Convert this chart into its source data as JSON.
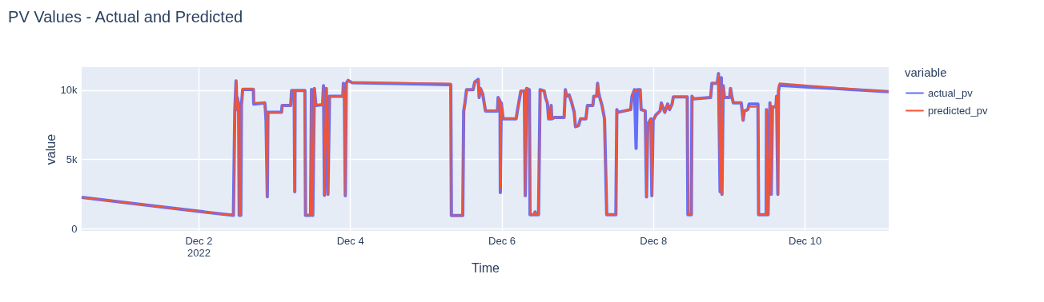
{
  "chart_data": {
    "type": "line",
    "title": "PV Values - Actual and Predicted",
    "xlabel": "Time",
    "ylabel": "value",
    "legend_title": "variable",
    "legend": "right",
    "grid": true,
    "line_style": "solid",
    "xlim": [
      "2022-11-30T11:00",
      "2022-12-11T02:36"
    ],
    "xticks": [
      {
        "value": "2022-12-02T00:00",
        "label": "Dec 2\n2022"
      },
      {
        "value": "2022-12-04T00:00",
        "label": "Dec 4"
      },
      {
        "value": "2022-12-06T00:00",
        "label": "Dec 6"
      },
      {
        "value": "2022-12-08T00:00",
        "label": "Dec 8"
      },
      {
        "value": "2022-12-10T00:00",
        "label": "Dec 10"
      }
    ],
    "ylim": [
      -170,
      11670
    ],
    "yticks": [
      0,
      {
        "value": 5000,
        "label": "5k"
      },
      {
        "value": 10000,
        "label": "10k"
      }
    ],
    "x": [
      "2022-11-30T11:00",
      "2022-12-02T11:04",
      "2022-12-02T11:30",
      "2022-12-02T11:54",
      "2022-12-02T12:12",
      "2022-12-02T12:18",
      "2022-12-02T12:42",
      "2022-12-02T12:54",
      "2022-12-02T13:24",
      "2022-12-02T13:36",
      "2022-12-02T14:00",
      "2022-12-02T17:24",
      "2022-12-02T17:30",
      "2022-12-02T21:00",
      "2022-12-02T21:12",
      "2022-12-02T21:24",
      "2022-12-02T21:48",
      "2022-12-02T22:00",
      "2022-12-03T02:18",
      "2022-12-03T02:30",
      "2022-12-03T05:12",
      "2022-12-03T05:30",
      "2022-12-03T06:18",
      "2022-12-03T06:30",
      "2022-12-03T06:36",
      "2022-12-03T09:42",
      "2022-12-03T09:54",
      "2022-12-03T11:30",
      "2022-12-03T11:48",
      "2022-12-03T12:12",
      "2022-12-03T12:42",
      "2022-12-03T13:12",
      "2022-12-03T15:18",
      "2022-12-03T15:36",
      "2022-12-03T15:54",
      "2022-12-03T16:30",
      "2022-12-03T17:00",
      "2022-12-03T17:30",
      "2022-12-03T21:42",
      "2022-12-03T21:54",
      "2022-12-03T22:12",
      "2022-12-03T22:30",
      "2022-12-03T22:48",
      "2022-12-03T23:24",
      "2022-12-04T00:36",
      "2022-12-05T07:54",
      "2022-12-05T08:06",
      "2022-12-05T11:42",
      "2022-12-05T12:00",
      "2022-12-05T12:24",
      "2022-12-05T12:54",
      "2022-12-05T15:00",
      "2022-12-05T15:30",
      "2022-12-05T16:36",
      "2022-12-05T16:54",
      "2022-12-05T17:18",
      "2022-12-05T18:00",
      "2022-12-05T18:54",
      "2022-12-05T22:42",
      "2022-12-05T22:54",
      "2022-12-05T23:30",
      "2022-12-05T23:36",
      "2022-12-05T23:54",
      "2022-12-06T00:30",
      "2022-12-06T04:36",
      "2022-12-06T05:00",
      "2022-12-06T06:06",
      "2022-12-06T07:12",
      "2022-12-06T07:30",
      "2022-12-06T07:54",
      "2022-12-06T08:48",
      "2022-12-06T09:00",
      "2022-12-06T10:24",
      "2022-12-06T10:36",
      "2022-12-06T10:48",
      "2022-12-06T11:42",
      "2022-12-06T12:12",
      "2022-12-06T13:30",
      "2022-12-06T13:54",
      "2022-12-06T14:30",
      "2022-12-06T14:54",
      "2022-12-06T15:30",
      "2022-12-06T15:42",
      "2022-12-06T15:54",
      "2022-12-06T16:48",
      "2022-12-06T19:48",
      "2022-12-06T20:12",
      "2022-12-06T20:36",
      "2022-12-06T21:24",
      "2022-12-06T22:06",
      "2022-12-06T23:00",
      "2022-12-06T23:24",
      "2022-12-07T00:24",
      "2022-12-07T01:00",
      "2022-12-07T02:42",
      "2022-12-07T03:12",
      "2022-12-07T04:54",
      "2022-12-07T05:12",
      "2022-12-07T06:06",
      "2022-12-07T06:24",
      "2022-12-07T06:42",
      "2022-12-07T07:00",
      "2022-12-07T07:48",
      "2022-12-07T08:36",
      "2022-12-07T09:18",
      "2022-12-07T12:12",
      "2022-12-07T12:30",
      "2022-12-07T12:48",
      "2022-12-07T16:54",
      "2022-12-07T17:18",
      "2022-12-07T18:06",
      "2022-12-07T18:36",
      "2022-12-07T19:00",
      "2022-12-07T19:54",
      "2022-12-07T20:12",
      "2022-12-07T21:30",
      "2022-12-07T21:54",
      "2022-12-07T22:18",
      "2022-12-07T23:18",
      "2022-12-07T23:36",
      "2022-12-08T00:00",
      "2022-12-08T00:54",
      "2022-12-08T02:12",
      "2022-12-08T02:36",
      "2022-12-08T03:42",
      "2022-12-08T04:36",
      "2022-12-08T05:12",
      "2022-12-08T06:00",
      "2022-12-08T06:24",
      "2022-12-08T10:48",
      "2022-12-08T11:00",
      "2022-12-08T12:06",
      "2022-12-08T12:18",
      "2022-12-08T12:48",
      "2022-12-08T18:12",
      "2022-12-08T18:36",
      "2022-12-08T20:18",
      "2022-12-08T20:42",
      "2022-12-08T21:12",
      "2022-12-08T21:36",
      "2022-12-08T21:48",
      "2022-12-08T22:12",
      "2022-12-08T22:36",
      "2022-12-09T00:12",
      "2022-12-09T00:30",
      "2022-12-09T00:54",
      "2022-12-09T01:24",
      "2022-12-09T03:54",
      "2022-12-09T04:12",
      "2022-12-09T04:30",
      "2022-12-09T04:54",
      "2022-12-09T06:00",
      "2022-12-09T06:24",
      "2022-12-09T09:12",
      "2022-12-09T09:24",
      "2022-12-09T11:48",
      "2022-12-09T11:54",
      "2022-12-09T12:24",
      "2022-12-09T13:00",
      "2022-12-09T13:24",
      "2022-12-09T13:48",
      "2022-12-09T14:54",
      "2022-12-09T15:06",
      "2022-12-09T15:30",
      "2022-12-09T15:42",
      "2022-12-09T16:00",
      "2022-12-11T02:36"
    ],
    "series": [
      {
        "name": "actual_pv",
        "color": "#636efa",
        "values": [
          2250,
          950,
          8500,
          10670,
          8600,
          9470,
          9000,
          950,
          950,
          8900,
          10050,
          10050,
          9000,
          9080,
          8600,
          7800,
          2300,
          8400,
          8400,
          8900,
          8900,
          9980,
          9980,
          2660,
          9980,
          9980,
          950,
          950,
          10050,
          950,
          10130,
          8900,
          8950,
          10330,
          2400,
          10130,
          2470,
          9560,
          9560,
          10500,
          9560,
          2370,
          10500,
          10710,
          10550,
          10400,
          940,
          940,
          8500,
          9080,
          10040,
          10040,
          10600,
          10780,
          9470,
          10130,
          9750,
          8500,
          8500,
          9470,
          9200,
          2600,
          9080,
          7930,
          7930,
          8500,
          9940,
          9940,
          2370,
          10130,
          10040,
          1000,
          1000,
          1200,
          1000,
          1000,
          10040,
          9940,
          9470,
          9080,
          7930,
          7930,
          8900,
          7930,
          8030,
          8030,
          10040,
          9560,
          9660,
          9180,
          8400,
          7360,
          7450,
          7930,
          7930,
          8900,
          8900,
          9560,
          9560,
          10500,
          9850,
          9560,
          8900,
          7930,
          1000,
          1000,
          8600,
          8400,
          8600,
          9560,
          10040,
          5800,
          10040,
          10040,
          8600,
          8500,
          2280,
          7550,
          7930,
          2370,
          7830,
          8220,
          8500,
          9080,
          8400,
          9000,
          8600,
          9000,
          9520,
          9520,
          1000,
          1000,
          9560,
          9370,
          9470,
          10500,
          10500,
          11200,
          2660,
          10900,
          2470,
          10330,
          9470,
          9470,
          10130,
          9560,
          9080,
          9080,
          8500,
          7830,
          8500,
          8600,
          9000,
          9000,
          1000,
          1000,
          8600,
          1000,
          9080,
          2470,
          8800,
          8800,
          9560,
          2470,
          9940,
          10350,
          9900
        ]
      },
      {
        "name": "predicted_pv",
        "color": "#ef553b",
        "values": [
          2250,
          950,
          8500,
          10670,
          8600,
          9470,
          9000,
          950,
          950,
          8900,
          10130,
          10130,
          9080,
          9080,
          8600,
          7800,
          2300,
          8400,
          8400,
          8900,
          8900,
          9980,
          9980,
          2660,
          9980,
          9980,
          950,
          950,
          10050,
          950,
          10130,
          8950,
          8950,
          10330,
          2470,
          10130,
          2470,
          9560,
          9560,
          10500,
          9560,
          2370,
          10500,
          10710,
          10550,
          10480,
          940,
          940,
          8500,
          9080,
          10040,
          10040,
          10600,
          10700,
          9470,
          10130,
          9750,
          8500,
          8500,
          9470,
          9200,
          2900,
          9080,
          7930,
          7930,
          8500,
          9940,
          9940,
          2370,
          10130,
          10040,
          1000,
          1000,
          1200,
          1000,
          1000,
          10040,
          9940,
          9470,
          9080,
          7930,
          7930,
          8900,
          7930,
          8030,
          8030,
          10040,
          9560,
          9660,
          9180,
          8400,
          7360,
          7450,
          7930,
          7930,
          8900,
          8900,
          9560,
          9560,
          10500,
          9850,
          9560,
          8900,
          7930,
          1000,
          1000,
          8600,
          8400,
          8600,
          9560,
          10040,
          9900,
          10040,
          10040,
          8600,
          8500,
          2280,
          7550,
          7930,
          2370,
          7830,
          8220,
          8500,
          9080,
          8400,
          9000,
          8600,
          9000,
          9520,
          9520,
          1000,
          1000,
          9560,
          9370,
          9470,
          10500,
          10500,
          11090,
          2660,
          10900,
          2470,
          10330,
          9470,
          9470,
          10130,
          9560,
          9080,
          9080,
          8500,
          7830,
          8500,
          8600,
          8800,
          8800,
          1000,
          1000,
          8600,
          1000,
          9080,
          2470,
          8800,
          8800,
          9560,
          2470,
          9940,
          10500,
          9900
        ]
      }
    ]
  }
}
